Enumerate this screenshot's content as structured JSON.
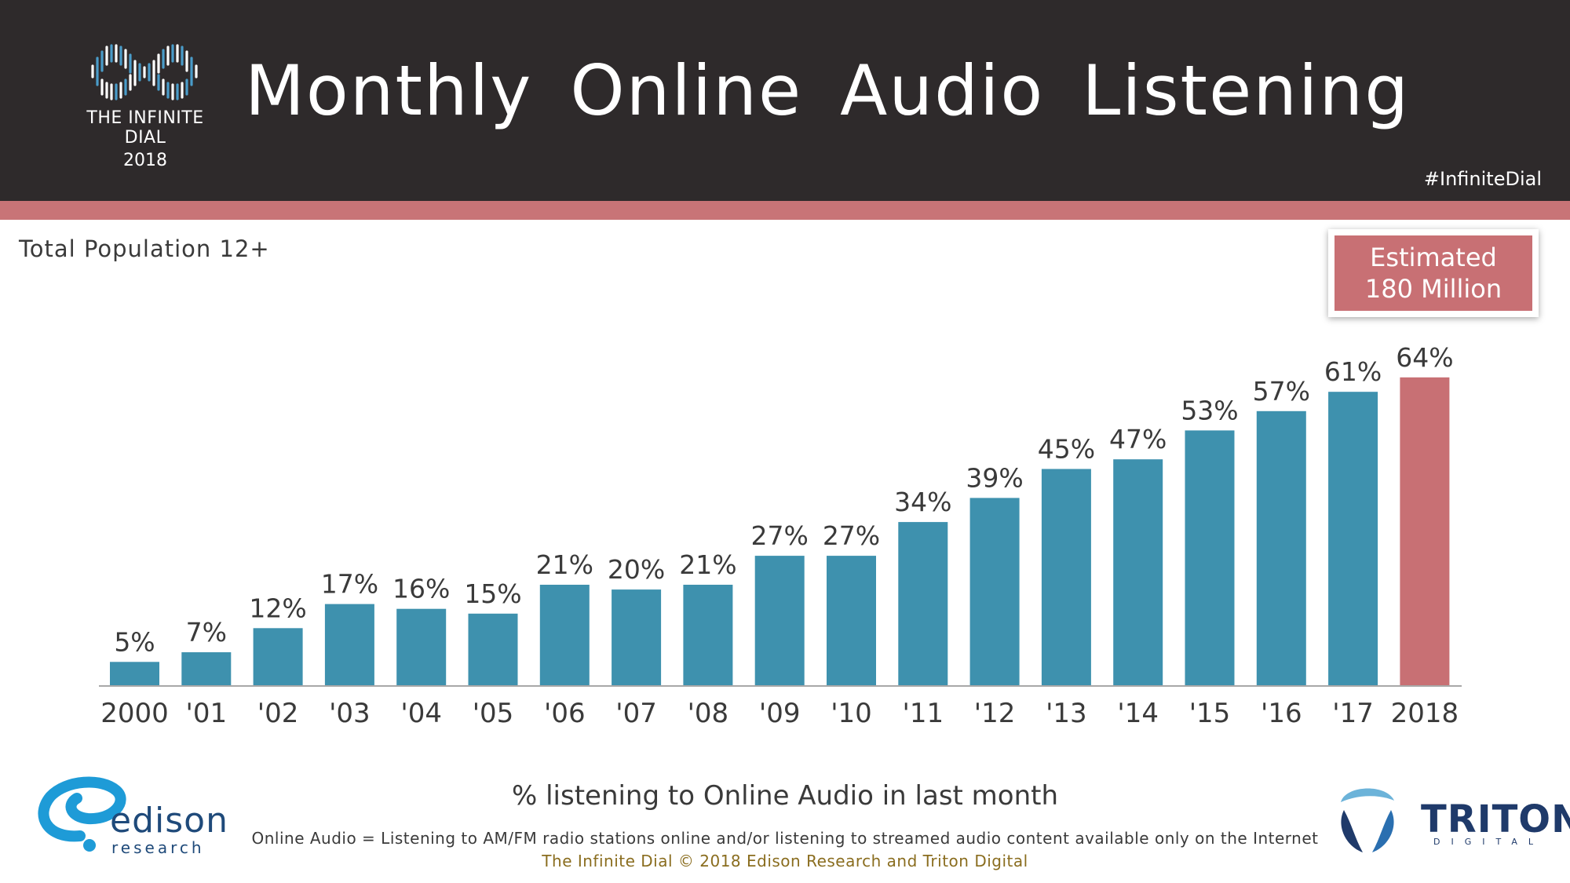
{
  "header": {
    "title": "Monthly  Online  Audio  Listening",
    "logo_line1": "THE INFINITE DIAL",
    "logo_line2": "2018",
    "hashtag": "#InfiniteDial"
  },
  "population_label": "Total  Population  12+",
  "estimate": {
    "line1": "Estimated",
    "line2": "180 Million"
  },
  "chart_data": {
    "type": "bar",
    "title": "Monthly Online Audio Listening",
    "xlabel": "",
    "ylabel": "",
    "ylim": [
      0,
      100
    ],
    "grid": false,
    "categories": [
      "2000",
      "'01",
      "'02",
      "'03",
      "'04",
      "'05",
      "'06",
      "'07",
      "'08",
      "'09",
      "'10",
      "'11",
      "'12",
      "'13",
      "'14",
      "'15",
      "'16",
      "'17",
      "2018"
    ],
    "values": [
      5,
      7,
      12,
      17,
      16,
      15,
      21,
      20,
      21,
      27,
      27,
      34,
      39,
      45,
      47,
      53,
      57,
      61,
      64
    ],
    "value_labels": [
      "5%",
      "7%",
      "12%",
      "17%",
      "16%",
      "15%",
      "21%",
      "20%",
      "21%",
      "27%",
      "27%",
      "34%",
      "39%",
      "45%",
      "47%",
      "53%",
      "57%",
      "61%",
      "64%"
    ],
    "colors": {
      "default": "#3e91ae",
      "highlight": "#c87074"
    },
    "highlight_index": 18
  },
  "subtitle": "% listening to Online Audio in last month",
  "footnote": "Online Audio = Listening to AM/FM radio stations online and/or listening to streamed audio content available only on the Internet",
  "copyright": "The  Infinite  Dial     © 2018  Edison  Research  and  Triton  Digital",
  "logos": {
    "edison_name": "edison",
    "edison_sub": "research",
    "triton_name": "TRITON",
    "triton_sub": "DIGITAL"
  },
  "colors": {
    "header_bg": "#2e2a2b",
    "stripe": "#c87477",
    "bar": "#3e91ae",
    "bar_highlight": "#c87074"
  }
}
